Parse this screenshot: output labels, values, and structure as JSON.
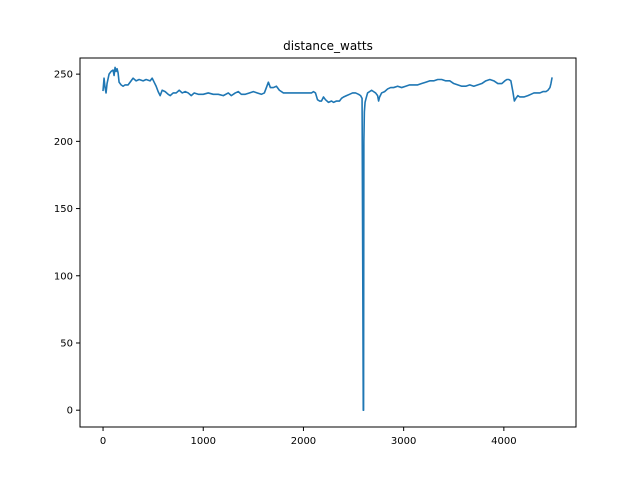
{
  "chart_data": {
    "type": "line",
    "title": "distance_watts",
    "xlabel": "",
    "ylabel": "",
    "xlim": [
      -230,
      4720
    ],
    "ylim": [
      -12.5,
      262
    ],
    "xticks": [
      0,
      1000,
      2000,
      3000,
      4000
    ],
    "yticks": [
      0,
      50,
      100,
      150,
      200,
      250
    ],
    "grid": false,
    "legend": "none",
    "series": [
      {
        "color": "#1f77b4",
        "points": [
          [
            0,
            238
          ],
          [
            10,
            247
          ],
          [
            20,
            240
          ],
          [
            30,
            236
          ],
          [
            40,
            243
          ],
          [
            60,
            250
          ],
          [
            80,
            252
          ],
          [
            100,
            253
          ],
          [
            110,
            249
          ],
          [
            120,
            255
          ],
          [
            130,
            252
          ],
          [
            140,
            254
          ],
          [
            150,
            251
          ],
          [
            160,
            244
          ],
          [
            180,
            242
          ],
          [
            200,
            241
          ],
          [
            220,
            242
          ],
          [
            250,
            242
          ],
          [
            280,
            245
          ],
          [
            300,
            247
          ],
          [
            330,
            245
          ],
          [
            360,
            246
          ],
          [
            400,
            245
          ],
          [
            430,
            246
          ],
          [
            470,
            245
          ],
          [
            490,
            247
          ],
          [
            510,
            244
          ],
          [
            530,
            241
          ],
          [
            550,
            237
          ],
          [
            570,
            234
          ],
          [
            590,
            238
          ],
          [
            620,
            237
          ],
          [
            650,
            235
          ],
          [
            670,
            234
          ],
          [
            700,
            236
          ],
          [
            730,
            236
          ],
          [
            760,
            238
          ],
          [
            790,
            236
          ],
          [
            820,
            237
          ],
          [
            850,
            236
          ],
          [
            880,
            234
          ],
          [
            910,
            236
          ],
          [
            950,
            235
          ],
          [
            1000,
            235
          ],
          [
            1050,
            236
          ],
          [
            1100,
            235
          ],
          [
            1150,
            235
          ],
          [
            1200,
            234
          ],
          [
            1250,
            236
          ],
          [
            1280,
            234
          ],
          [
            1320,
            236
          ],
          [
            1350,
            237
          ],
          [
            1380,
            235
          ],
          [
            1420,
            235
          ],
          [
            1460,
            236
          ],
          [
            1500,
            237
          ],
          [
            1540,
            236
          ],
          [
            1580,
            235
          ],
          [
            1610,
            236
          ],
          [
            1630,
            240
          ],
          [
            1650,
            244
          ],
          [
            1670,
            240
          ],
          [
            1700,
            240
          ],
          [
            1730,
            241
          ],
          [
            1760,
            238
          ],
          [
            1800,
            236
          ],
          [
            1850,
            236
          ],
          [
            1900,
            236
          ],
          [
            1950,
            236
          ],
          [
            2000,
            236
          ],
          [
            2050,
            236
          ],
          [
            2080,
            236
          ],
          [
            2100,
            237
          ],
          [
            2120,
            236
          ],
          [
            2140,
            231
          ],
          [
            2160,
            230
          ],
          [
            2180,
            230
          ],
          [
            2200,
            233
          ],
          [
            2220,
            231
          ],
          [
            2250,
            229
          ],
          [
            2280,
            230
          ],
          [
            2300,
            229
          ],
          [
            2330,
            230
          ],
          [
            2360,
            230
          ],
          [
            2380,
            232
          ],
          [
            2400,
            233
          ],
          [
            2430,
            234
          ],
          [
            2460,
            235
          ],
          [
            2490,
            236
          ],
          [
            2520,
            236
          ],
          [
            2550,
            235
          ],
          [
            2570,
            234
          ],
          [
            2585,
            232
          ],
          [
            2592,
            100
          ],
          [
            2597,
            0
          ],
          [
            2600,
            0
          ],
          [
            2603,
            200
          ],
          [
            2608,
            222
          ],
          [
            2615,
            229
          ],
          [
            2625,
            232
          ],
          [
            2640,
            236
          ],
          [
            2660,
            237
          ],
          [
            2680,
            238
          ],
          [
            2700,
            237
          ],
          [
            2720,
            236
          ],
          [
            2740,
            234
          ],
          [
            2750,
            230
          ],
          [
            2760,
            233
          ],
          [
            2780,
            236
          ],
          [
            2810,
            237
          ],
          [
            2840,
            239
          ],
          [
            2870,
            240
          ],
          [
            2900,
            240
          ],
          [
            2940,
            241
          ],
          [
            2980,
            240
          ],
          [
            3020,
            241
          ],
          [
            3060,
            242
          ],
          [
            3100,
            242
          ],
          [
            3140,
            242
          ],
          [
            3180,
            243
          ],
          [
            3220,
            244
          ],
          [
            3260,
            245
          ],
          [
            3300,
            245
          ],
          [
            3340,
            246
          ],
          [
            3380,
            246
          ],
          [
            3420,
            245
          ],
          [
            3460,
            245
          ],
          [
            3500,
            243
          ],
          [
            3540,
            242
          ],
          [
            3580,
            241
          ],
          [
            3620,
            241
          ],
          [
            3660,
            242
          ],
          [
            3700,
            241
          ],
          [
            3740,
            242
          ],
          [
            3780,
            243
          ],
          [
            3820,
            245
          ],
          [
            3860,
            246
          ],
          [
            3900,
            245
          ],
          [
            3940,
            243
          ],
          [
            3980,
            243
          ],
          [
            4010,
            245
          ],
          [
            4030,
            246
          ],
          [
            4050,
            246
          ],
          [
            4070,
            245
          ],
          [
            4090,
            237
          ],
          [
            4105,
            230
          ],
          [
            4120,
            232
          ],
          [
            4140,
            234
          ],
          [
            4160,
            233
          ],
          [
            4180,
            233
          ],
          [
            4200,
            233
          ],
          [
            4240,
            234
          ],
          [
            4270,
            235
          ],
          [
            4300,
            236
          ],
          [
            4330,
            236
          ],
          [
            4360,
            236
          ],
          [
            4390,
            237
          ],
          [
            4420,
            237
          ],
          [
            4440,
            238
          ],
          [
            4460,
            240
          ],
          [
            4470,
            243
          ],
          [
            4480,
            247
          ]
        ]
      }
    ]
  }
}
